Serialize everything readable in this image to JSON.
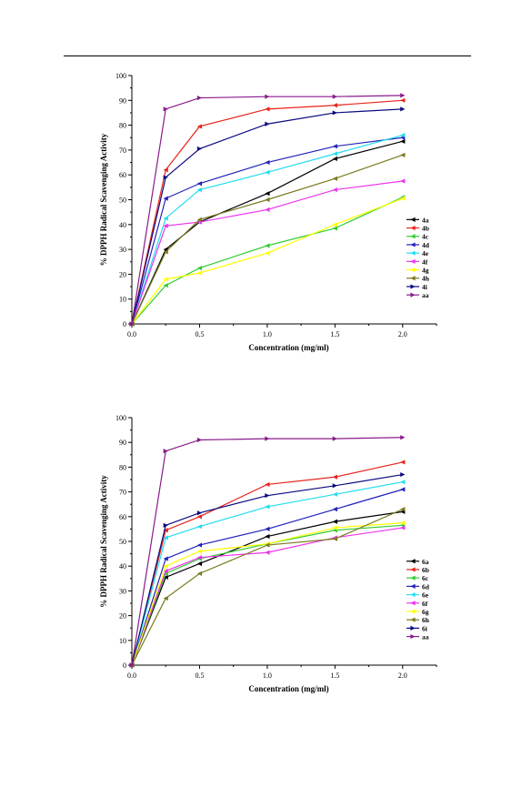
{
  "chart_data": [
    {
      "type": "line",
      "xlabel": "Concentration (mg/ml)",
      "ylabel": "% DPPH Radical Scavenging Activity",
      "xlim": [
        0,
        2.25
      ],
      "ylim": [
        0,
        100
      ],
      "x_ticks": [
        "0.0",
        "0.5",
        "1.0",
        "1.5",
        "2.0"
      ],
      "y_ticks": [
        "0",
        "10",
        "20",
        "30",
        "40",
        "50",
        "60",
        "70",
        "80",
        "90",
        "100"
      ],
      "x": [
        0,
        0.25,
        0.5,
        1.0,
        1.5,
        2.0
      ],
      "legend_position": "center-right",
      "series": [
        {
          "name": "4a",
          "color": "#000000",
          "marker": "triangle-left",
          "values": [
            0,
            30,
            41,
            52.5,
            66.5,
            73.5
          ]
        },
        {
          "name": "4b",
          "color": "#e8241c",
          "marker": "triangle-left",
          "values": [
            0,
            62,
            79.5,
            86.5,
            88,
            90
          ]
        },
        {
          "name": "4c",
          "color": "#33cc33",
          "marker": "triangle-left",
          "values": [
            0,
            15.5,
            22.5,
            31.5,
            38.5,
            51
          ]
        },
        {
          "name": "4d",
          "color": "#2222bb",
          "marker": "triangle-left",
          "values": [
            0,
            50.5,
            56.5,
            65,
            71.5,
            75
          ]
        },
        {
          "name": "4e",
          "color": "#22ddee",
          "marker": "triangle-left",
          "values": [
            0,
            42.5,
            54,
            61,
            68.5,
            76
          ]
        },
        {
          "name": "4f",
          "color": "#ee33ee",
          "marker": "triangle-left",
          "values": [
            0,
            39.5,
            41,
            46,
            54,
            57.5
          ]
        },
        {
          "name": "4g",
          "color": "#ffff00",
          "marker": "triangle-left",
          "values": [
            0,
            18,
            20.5,
            28.5,
            40,
            50.5
          ]
        },
        {
          "name": "4h",
          "color": "#7a7a20",
          "marker": "triangle-left",
          "values": [
            0,
            29,
            42,
            50,
            58.5,
            68
          ]
        },
        {
          "name": "4i",
          "color": "#0a0a80",
          "marker": "triangle-right",
          "values": [
            0,
            59,
            70.5,
            80.5,
            85,
            86.5
          ]
        },
        {
          "name": "aa",
          "color": "#8a1a8a",
          "marker": "triangle-right",
          "values": [
            0,
            86.5,
            91,
            91.5,
            91.5,
            92
          ]
        }
      ]
    },
    {
      "type": "line",
      "xlabel": "Concentration (mg/ml)",
      "ylabel": "% DPPH Radical Scavenging Activity",
      "xlim": [
        0,
        2.25
      ],
      "ylim": [
        0,
        100
      ],
      "x_ticks": [
        "0.0",
        "0.5",
        "1.0",
        "1.5",
        "2.0"
      ],
      "y_ticks": [
        "0",
        "10",
        "20",
        "30",
        "40",
        "50",
        "60",
        "70",
        "80",
        "90",
        "100"
      ],
      "x": [
        0,
        0.25,
        0.5,
        1.0,
        1.5,
        2.0
      ],
      "legend_position": "center-right",
      "series": [
        {
          "name": "6a",
          "color": "#000000",
          "marker": "triangle-left",
          "values": [
            0,
            35.5,
            41,
            52,
            58,
            62
          ]
        },
        {
          "name": "6b",
          "color": "#e8241c",
          "marker": "triangle-left",
          "values": [
            0,
            54.5,
            60,
            73,
            76,
            82
          ]
        },
        {
          "name": "6c",
          "color": "#33cc33",
          "marker": "triangle-left",
          "values": [
            0,
            37,
            43,
            49,
            54.5,
            56.5
          ]
        },
        {
          "name": "6d",
          "color": "#2222bb",
          "marker": "triangle-left",
          "values": [
            0,
            43,
            48.5,
            55,
            63,
            71
          ]
        },
        {
          "name": "6e",
          "color": "#22ddee",
          "marker": "triangle-left",
          "values": [
            0,
            51.5,
            56,
            64,
            69,
            74
          ]
        },
        {
          "name": "6f",
          "color": "#ee33ee",
          "marker": "triangle-left",
          "values": [
            0,
            38,
            43.5,
            45.5,
            51.5,
            55.5
          ]
        },
        {
          "name": "6g",
          "color": "#ffff00",
          "marker": "triangle-left",
          "values": [
            0,
            40,
            46,
            49,
            55.5,
            57.5
          ]
        },
        {
          "name": "6h",
          "color": "#7a7a20",
          "marker": "triangle-left",
          "values": [
            0,
            27,
            37,
            48.5,
            51,
            63
          ]
        },
        {
          "name": "6i",
          "color": "#0a0a80",
          "marker": "triangle-right",
          "values": [
            0,
            56.5,
            61.5,
            68.5,
            72.5,
            77
          ]
        },
        {
          "name": "aa",
          "color": "#8a1a8a",
          "marker": "triangle-right",
          "values": [
            0,
            86.5,
            91,
            91.5,
            91.5,
            92
          ]
        }
      ]
    }
  ]
}
